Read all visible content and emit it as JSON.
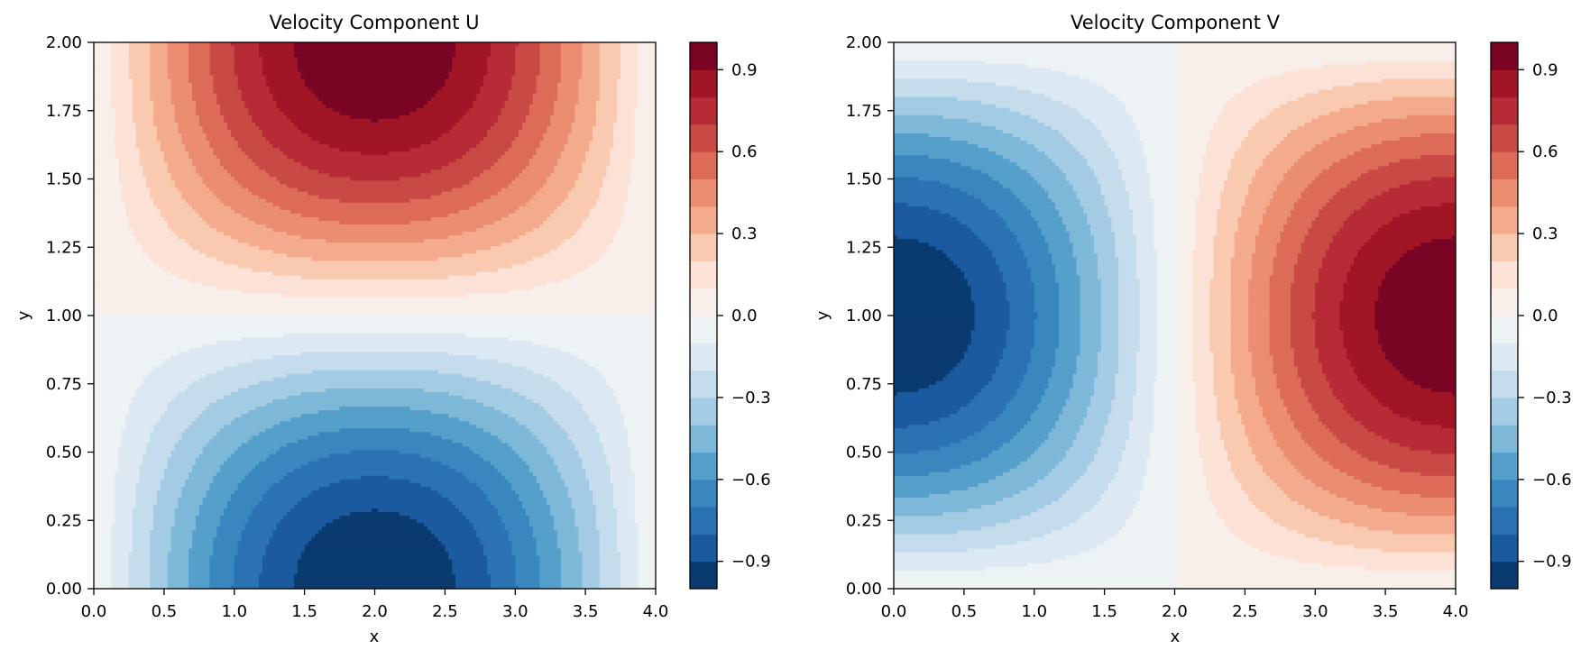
{
  "chart_data": [
    {
      "type": "heatmap",
      "title": "Velocity Component U",
      "xlabel": "x",
      "ylabel": "y",
      "xlim": [
        0.0,
        4.0
      ],
      "ylim": [
        0.0,
        2.0
      ],
      "x_ticks": [
        "0.0",
        "0.5",
        "1.0",
        "1.5",
        "2.0",
        "2.5",
        "3.0",
        "3.5",
        "4.0"
      ],
      "y_ticks": [
        "0.00",
        "0.25",
        "0.50",
        "0.75",
        "1.00",
        "1.25",
        "1.50",
        "1.75",
        "2.00"
      ],
      "colormap": "RdBu_r",
      "field": "-sin(pi*x/4)*cos(pi*y/2)",
      "colorbar": {
        "range": [
          -1.0,
          1.0
        ],
        "levels": 20,
        "ticks": [
          "0.9",
          "0.6",
          "0.3",
          "0.0",
          "−0.3",
          "−0.6",
          "−0.9"
        ],
        "tick_values": [
          0.9,
          0.6,
          0.3,
          0.0,
          -0.3,
          -0.6,
          -0.9
        ]
      }
    },
    {
      "type": "heatmap",
      "title": "Velocity Component V",
      "xlabel": "x",
      "ylabel": "y",
      "xlim": [
        0.0,
        4.0
      ],
      "ylim": [
        0.0,
        2.0
      ],
      "x_ticks": [
        "0.0",
        "0.5",
        "1.0",
        "1.5",
        "2.0",
        "2.5",
        "3.0",
        "3.5",
        "4.0"
      ],
      "y_ticks": [
        "0.00",
        "0.25",
        "0.50",
        "0.75",
        "1.00",
        "1.25",
        "1.50",
        "1.75",
        "2.00"
      ],
      "colormap": "RdBu_r",
      "field": "-cos(pi*x/4)*sin(pi*y/2)",
      "colorbar": {
        "range": [
          -1.0,
          1.0
        ],
        "levels": 20,
        "ticks": [
          "0.9",
          "0.6",
          "0.3",
          "0.0",
          "−0.3",
          "−0.6",
          "−0.9"
        ],
        "tick_values": [
          0.9,
          0.6,
          0.3,
          0.0,
          -0.3,
          -0.6,
          -0.9
        ]
      }
    }
  ],
  "colors": {
    "levels": [
      "#0a3b70",
      "#1c5a9f",
      "#2b72b3",
      "#3a86bf",
      "#559fcb",
      "#7db8d9",
      "#a3cbe3",
      "#c4dcec",
      "#dce9f2",
      "#edf2f5",
      "#f8eeea",
      "#fce2d6",
      "#f9c9b0",
      "#f4ab8d",
      "#ea8d70",
      "#dc6c57",
      "#c94a45",
      "#b72b37",
      "#a01627",
      "#790424"
    ],
    "axis": "#000000"
  }
}
